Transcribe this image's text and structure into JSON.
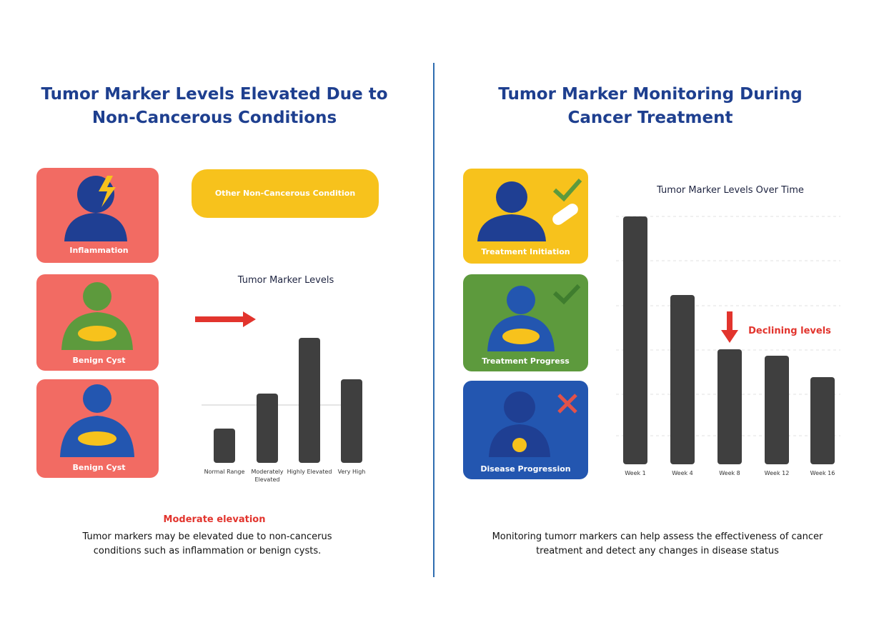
{
  "chart_data": [
    {
      "type": "bar",
      "title": "Tumor Marker Levels Elevated Due to Non-Cancerous Conditions",
      "cards": [
        "Inflammation",
        "Benign Cyst",
        "Benign Cyst"
      ],
      "callout": "Other Non-Cancerous Condition",
      "chart_title": "Tumor Marker Levels",
      "categories": [
        "Normal Range",
        "Moderately Elevated",
        "Highly Elevated",
        "Very High"
      ],
      "values": [
        48,
        97,
        175,
        117
      ],
      "color": "#3f3f3f",
      "ylim": [
        0,
        175
      ],
      "annotation": "Moderate elevation",
      "caption": "Tumor markers may be elevated due to non-cancerus conditions such as inflammation or benign cysts."
    },
    {
      "type": "bar",
      "title": "Tumor Marker Monitoring During Cancer Treatment",
      "cards": [
        "Treatment Initiation",
        "Treatment Progress",
        "Disease Progression"
      ],
      "chart_title": "Tumor Marker Levels Over Time",
      "categories": [
        "Week 1",
        "Week 4",
        "Week 8",
        "Week 12",
        "Week 16"
      ],
      "values": [
        347,
        237,
        161,
        152,
        122
      ],
      "color": "#3f3f3f",
      "ylim": [
        0,
        347
      ],
      "annotation": "Declining levels",
      "caption": "Monitoring tumorr markers can help assess the effectiveness of cancer treatment and detect any changes in disease status"
    }
  ]
}
